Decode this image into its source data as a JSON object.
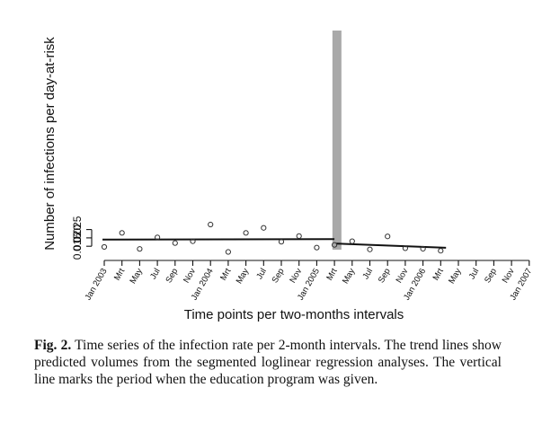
{
  "chart_data": {
    "type": "scatter",
    "xlabel": "Time points per two-months intervals",
    "ylabel": "Number of infections per day-at-risk",
    "ylim": [
      0.0108,
      0.0305
    ],
    "yticks": [
      0.015,
      0.02,
      0.025
    ],
    "ytick_labels": [
      "0.015",
      "0.020",
      "0.025"
    ],
    "categories": [
      "Jan 2003",
      "Mrt",
      "May",
      "Jul",
      "Sep",
      "Nov",
      "Jan 2004",
      "Mrt",
      "May",
      "Jul",
      "Sep",
      "Nov",
      "Jan 2005",
      "Mrt",
      "May",
      "Jul",
      "Sep",
      "Nov",
      "Jan 2006",
      "Mrt",
      "May",
      "Jul",
      "Sep",
      "Nov",
      "Jan 2007"
    ],
    "points": [
      {
        "x": 0,
        "y": 0.0146
      },
      {
        "x": 1,
        "y": 0.023
      },
      {
        "x": 2,
        "y": 0.0134
      },
      {
        "x": 3,
        "y": 0.0203
      },
      {
        "x": 4,
        "y": 0.0169
      },
      {
        "x": 5,
        "y": 0.018
      },
      {
        "x": 6,
        "y": 0.028
      },
      {
        "x": 7,
        "y": 0.0116
      },
      {
        "x": 8,
        "y": 0.023
      },
      {
        "x": 9,
        "y": 0.026
      },
      {
        "x": 10,
        "y": 0.0177
      },
      {
        "x": 11,
        "y": 0.0211
      },
      {
        "x": 12,
        "y": 0.0142
      },
      {
        "x": 13,
        "y": 0.0158
      },
      {
        "x": 14,
        "y": 0.018
      },
      {
        "x": 15,
        "y": 0.0131
      },
      {
        "x": 16,
        "y": 0.0209
      },
      {
        "x": 17,
        "y": 0.0138
      },
      {
        "x": 18,
        "y": 0.0135
      },
      {
        "x": 19,
        "y": 0.0123
      }
    ],
    "trend_lines": [
      {
        "x0": -0.1,
        "y0": 0.019,
        "x1": 13.0,
        "y1": 0.0193
      },
      {
        "x0": 13.1,
        "y0": 0.0166,
        "x1": 19.3,
        "y1": 0.0141
      }
    ],
    "intervention_band": {
      "x_from": 12.48,
      "x_to": 12.72
    },
    "grid": false,
    "colors": {
      "band": "#a9a9a9",
      "points": "#333333",
      "lines": "#111111"
    }
  },
  "caption": {
    "label": "Fig. 2.",
    "text": " Time series of the infection rate per 2-month intervals. The trend lines show predicted volumes from the segmented loglinear regression analyses. The vertical line marks the period when the education program was given."
  }
}
